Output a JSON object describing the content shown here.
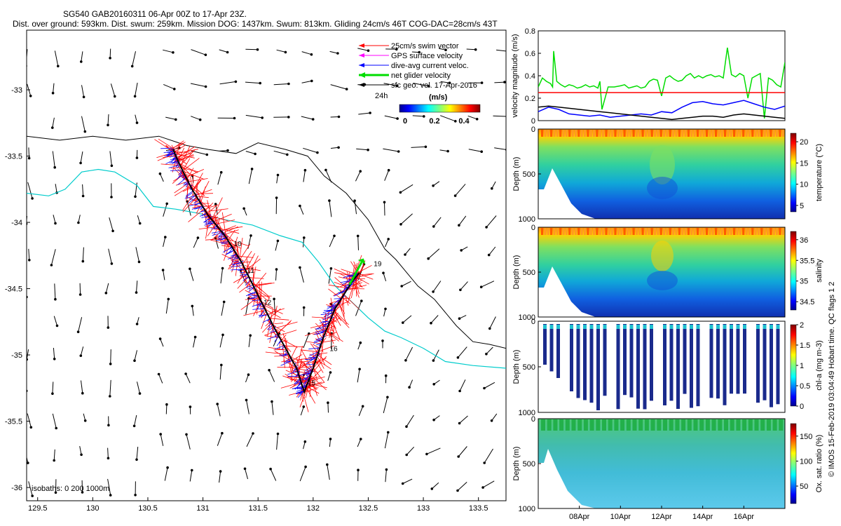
{
  "header": {
    "title": "SG540 GAB20160311 06-Apr 00Z to 17-Apr 23Z.",
    "subtitle": "Dist. over ground: 593km. Dist. swum: 259km. Mission DOG: 1437km. Swum: 813km. Gliding 24cm/s 46T COG-DAC=28cm/s 43T"
  },
  "side_note": "© IMOS 15-Feb-2019 03:04:49 Hobart time. QC flags 1  2",
  "chart_data": [
    {
      "type": "map",
      "xlim": [
        129.4,
        133.75
      ],
      "ylim": [
        -36.1,
        -32.55
      ],
      "xticks": [
        129.5,
        130,
        130.5,
        131,
        131.5,
        132,
        132.5,
        133,
        133.5
      ],
      "yticks": [
        -33,
        -33.5,
        -34,
        -34.5,
        -35,
        -35.5,
        -36
      ],
      "legend": {
        "position": "top-right",
        "entries": [
          "25cm/s swim vector",
          "GPS surface velocity",
          "dive-avg current veloc.",
          "net glider velocity",
          "sfc geo. vel. 17-Apr-2016"
        ],
        "entry_colors": [
          "#ff0000",
          "#ff00ff",
          "#0000ff",
          "#00dd00",
          "#000000"
        ],
        "scale_label": "24h"
      },
      "colorbar": {
        "label": "(m/s)",
        "ticks": [
          "0",
          "0.2",
          "0.4"
        ],
        "range": [
          0,
          0.5
        ]
      },
      "isobath_label": "isobaths: 0   200   1000m",
      "isobaths": [
        {
          "depth": 200,
          "color": "#000000",
          "points": [
            [
              129.4,
              -33.35
            ],
            [
              129.7,
              -33.38
            ],
            [
              130.0,
              -33.35
            ],
            [
              130.3,
              -33.38
            ],
            [
              130.6,
              -33.35
            ],
            [
              130.85,
              -33.42
            ],
            [
              131.05,
              -33.45
            ],
            [
              131.3,
              -33.48
            ],
            [
              131.5,
              -33.4
            ],
            [
              131.75,
              -33.45
            ],
            [
              131.95,
              -33.5
            ],
            [
              132.1,
              -33.65
            ],
            [
              132.3,
              -33.78
            ],
            [
              132.5,
              -33.98
            ],
            [
              132.65,
              -34.2
            ],
            [
              132.75,
              -34.28
            ],
            [
              132.95,
              -34.48
            ],
            [
              133.1,
              -34.58
            ],
            [
              133.3,
              -34.78
            ],
            [
              133.45,
              -34.9
            ],
            [
              133.6,
              -34.92
            ],
            [
              133.75,
              -34.95
            ]
          ]
        },
        {
          "depth": 1000,
          "color": "#00cccc",
          "points": [
            [
              129.4,
              -33.78
            ],
            [
              129.6,
              -33.8
            ],
            [
              129.75,
              -33.75
            ],
            [
              129.9,
              -33.62
            ],
            [
              130.05,
              -33.6
            ],
            [
              130.2,
              -33.62
            ],
            [
              130.4,
              -33.72
            ],
            [
              130.55,
              -33.88
            ],
            [
              130.75,
              -33.9
            ],
            [
              130.95,
              -33.93
            ],
            [
              131.2,
              -33.98
            ],
            [
              131.45,
              -34.02
            ],
            [
              131.7,
              -34.1
            ],
            [
              131.9,
              -34.15
            ],
            [
              132.05,
              -34.3
            ],
            [
              132.2,
              -34.48
            ],
            [
              132.35,
              -34.6
            ],
            [
              132.5,
              -34.72
            ],
            [
              132.65,
              -34.82
            ],
            [
              132.8,
              -34.87
            ],
            [
              133.0,
              -34.95
            ],
            [
              133.2,
              -35.05
            ],
            [
              133.45,
              -35.08
            ],
            [
              133.75,
              -35.1
            ]
          ]
        }
      ],
      "glider_track": {
        "color": "#000000",
        "points": [
          [
            130.73,
            -33.45
          ],
          [
            130.78,
            -33.55
          ],
          [
            130.9,
            -33.75
          ],
          [
            131.05,
            -33.95
          ],
          [
            131.2,
            -34.1
          ],
          [
            131.35,
            -34.3
          ],
          [
            131.5,
            -34.55
          ],
          [
            131.65,
            -34.8
          ],
          [
            131.85,
            -35.1
          ],
          [
            131.92,
            -35.28
          ],
          [
            132.0,
            -35.1
          ],
          [
            132.1,
            -34.85
          ],
          [
            132.2,
            -34.65
          ],
          [
            132.35,
            -34.45
          ],
          [
            132.42,
            -34.38
          ]
        ]
      },
      "net_velocity_arrow": {
        "from": [
          132.33,
          -34.47
        ],
        "to": [
          132.44,
          -34.3
        ],
        "color": "#00dd00"
      },
      "day_labels": [
        {
          "text": "10",
          "lon": 131.28,
          "lat": -34.18
        },
        {
          "text": "11",
          "lon": 131.4,
          "lat": -34.38
        },
        {
          "text": "12",
          "lon": 131.55,
          "lat": -34.62
        },
        {
          "text": "15",
          "lon": 131.95,
          "lat": -35.23
        },
        {
          "text": "16",
          "lon": 132.15,
          "lat": -34.97
        },
        {
          "text": "19",
          "lon": 132.55,
          "lat": -34.33
        }
      ],
      "velocity_field": {
        "row_lats": [
          -32.7,
          -32.95,
          -33.2,
          -33.45,
          -33.7,
          -33.95,
          -34.2,
          -34.45,
          -34.7,
          -34.95,
          -35.2,
          -35.45,
          -35.7,
          -35.95
        ],
        "col_lons": [
          129.4,
          129.65,
          129.9,
          130.15,
          130.4,
          130.65,
          130.9,
          131.15,
          131.4,
          131.65,
          131.9,
          132.15,
          132.4,
          132.65,
          132.9,
          133.15,
          133.4,
          133.65
        ]
      }
    },
    {
      "type": "line",
      "ylabel": "velocity magnitude (m/s)",
      "xlim": [
        0,
        12
      ],
      "ylim": [
        0,
        0.8
      ],
      "yticks": [
        0,
        0.2,
        0.4,
        0.6,
        0.8
      ],
      "series": [
        {
          "color": "#00dd00",
          "x": [
            0,
            0.2,
            0.4,
            0.6,
            0.7,
            0.75,
            0.9,
            1.1,
            1.3,
            1.5,
            1.7,
            1.9,
            2.1,
            2.3,
            2.5,
            2.7,
            2.9,
            3.0,
            3.1,
            3.4,
            3.7,
            4.0,
            4.2,
            4.4,
            4.6,
            4.8,
            5.0,
            5.2,
            5.4,
            5.6,
            5.8,
            6.0,
            6.2,
            6.4,
            6.6,
            6.8,
            7.0,
            7.2,
            7.4,
            7.6,
            7.8,
            8.0,
            8.2,
            8.4,
            8.6,
            8.8,
            9.0,
            9.2,
            9.4,
            9.6,
            9.8,
            10.0,
            10.2,
            10.4,
            10.6,
            10.8,
            11.0,
            11.2,
            11.4,
            11.6,
            11.8,
            12.0
          ],
          "y": [
            0.3,
            0.38,
            0.35,
            0.33,
            0.3,
            0.62,
            0.35,
            0.32,
            0.3,
            0.32,
            0.31,
            0.29,
            0.3,
            0.32,
            0.3,
            0.31,
            0.29,
            0.35,
            0.1,
            0.3,
            0.3,
            0.31,
            0.32,
            0.29,
            0.3,
            0.31,
            0.29,
            0.3,
            0.35,
            0.37,
            0.36,
            0.22,
            0.38,
            0.4,
            0.37,
            0.35,
            0.36,
            0.4,
            0.42,
            0.38,
            0.4,
            0.38,
            0.4,
            0.41,
            0.39,
            0.4,
            0.38,
            0.65,
            0.41,
            0.39,
            0.42,
            0.4,
            0.2,
            0.38,
            0.4,
            0.42,
            0.02,
            0.38,
            0.36,
            0.32,
            0.3,
            0.52
          ]
        },
        {
          "color": "#0000ff",
          "x": [
            0,
            0.5,
            1.0,
            1.5,
            2.0,
            2.5,
            3.0,
            3.5,
            4.0,
            4.5,
            5.0,
            5.5,
            6.0,
            6.5,
            7.0,
            7.5,
            8.0,
            8.5,
            9.0,
            9.5,
            10.0,
            10.5,
            11.0,
            11.5,
            12.0
          ],
          "y": [
            0.08,
            0.12,
            0.1,
            0.06,
            0.05,
            0.04,
            0.05,
            0.03,
            0.04,
            0.05,
            0.06,
            0.05,
            0.08,
            0.07,
            0.12,
            0.16,
            0.17,
            0.15,
            0.14,
            0.16,
            0.18,
            0.15,
            0.12,
            0.1,
            0.13
          ]
        },
        {
          "color": "#000000",
          "x": [
            0,
            0.5,
            1.0,
            1.5,
            2.0,
            2.5,
            3.0,
            3.5,
            4.0,
            4.5,
            5.0,
            5.5,
            6.0,
            6.5,
            7.0,
            7.5,
            8.0,
            8.5,
            9.0,
            9.5,
            10.0,
            10.5,
            11.0,
            11.5,
            12.0
          ],
          "y": [
            0.12,
            0.13,
            0.12,
            0.11,
            0.1,
            0.09,
            0.08,
            0.07,
            0.06,
            0.05,
            0.04,
            0.03,
            0.02,
            0.01,
            0.02,
            0.03,
            0.04,
            0.04,
            0.03,
            0.05,
            0.06,
            0.05,
            0.04,
            0.03,
            0.02
          ]
        },
        {
          "color": "#ff0000",
          "x": [
            0,
            12
          ],
          "y": [
            0.25,
            0.25
          ]
        }
      ]
    },
    {
      "type": "heatmap",
      "ylabel": "Depth (m)",
      "cbar_label": "temperature (°C)",
      "ylim": [
        0,
        1000
      ],
      "yticks": [
        0,
        500,
        1000
      ],
      "cbar_ticks": [
        5,
        10,
        15,
        20
      ],
      "cbar_range": [
        3.5,
        22
      ],
      "colorscale": "jet"
    },
    {
      "type": "heatmap",
      "ylabel": "Depth (m)",
      "cbar_label": "salinity",
      "ylim": [
        0,
        1000
      ],
      "yticks": [
        0,
        500,
        1000
      ],
      "cbar_ticks": [
        34.5,
        35,
        35.5,
        36
      ],
      "cbar_range": [
        34.3,
        36.2
      ],
      "colorscale": "jet"
    },
    {
      "type": "heatmap",
      "ylabel": "Depth (m)",
      "cbar_label": "chl-a (mg m-3)",
      "ylim": [
        0,
        1000
      ],
      "yticks": [
        0,
        500,
        1000
      ],
      "cbar_ticks": [
        0,
        0.5,
        1,
        1.5,
        2
      ],
      "cbar_range": [
        0,
        2
      ],
      "colorscale": "jet"
    },
    {
      "type": "heatmap",
      "ylabel": "Depth (m)",
      "cbar_label": "Ox. sat. ratio (%)",
      "ylim": [
        0,
        1000
      ],
      "yticks": [
        0,
        500,
        1000
      ],
      "cbar_ticks": [
        50,
        100,
        150
      ],
      "cbar_range": [
        15,
        175
      ],
      "colorscale": "jet",
      "xticks": [
        "08Apr",
        "10Apr",
        "12Apr",
        "14Apr",
        "16Apr"
      ],
      "xtick_pos": [
        2,
        4,
        6,
        8,
        10
      ]
    }
  ]
}
